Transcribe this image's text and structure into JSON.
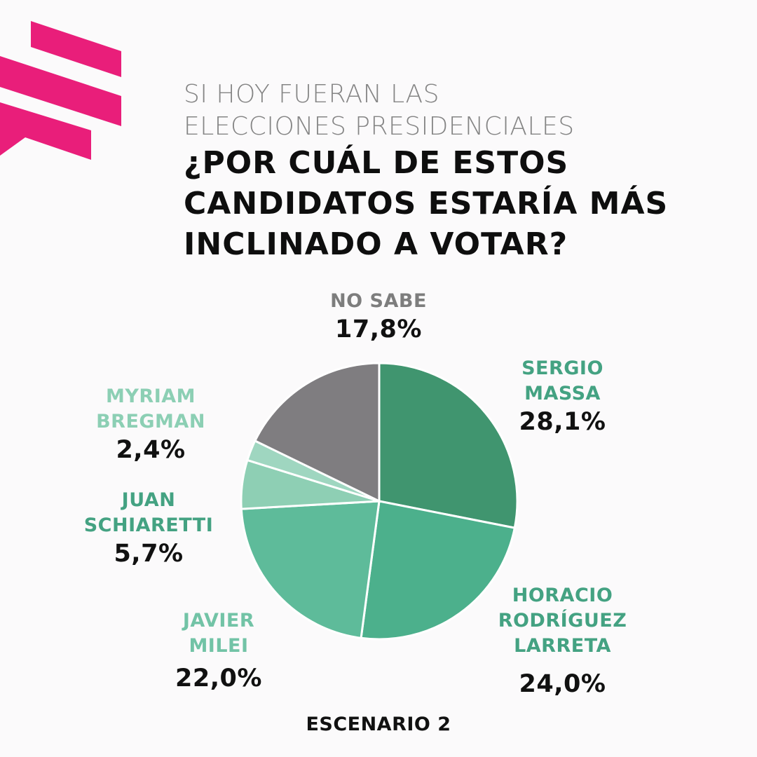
{
  "brand": {
    "accent": "#e91e7a"
  },
  "title": {
    "subtitle_lines": [
      "SI HOY FUERAN LAS",
      "ELECCIONES PRESIDENCIALES"
    ],
    "question_lines": [
      "¿POR CUÁL DE ESTOS",
      "CANDIDATOS ESTARÍA MÁS",
      "INCLINADO A VOTAR?"
    ]
  },
  "chart_data": {
    "type": "pie",
    "title": "¿POR CUÁL DE ESTOS CANDIDATOS ESTARÍA MÁS INCLINADO A VOTAR?",
    "scenario": "ESCENARIO 2",
    "slices": [
      {
        "name_lines": [
          "SERGIO",
          "MASSA"
        ],
        "value": 28.1,
        "label": "28,1%",
        "color": "#40956f",
        "label_color": "#44a282"
      },
      {
        "name_lines": [
          "HORACIO",
          "RODRÍGUEZ",
          "LARRETA"
        ],
        "value": 24.0,
        "label": "24,0%",
        "color": "#4cb08c",
        "label_color": "#44a282"
      },
      {
        "name_lines": [
          "JAVIER",
          "MILEI"
        ],
        "value": 22.0,
        "label": "22,0%",
        "color": "#5ebb9a",
        "label_color": "#72c3a6"
      },
      {
        "name_lines": [
          "JUAN",
          "SCHIARETTI"
        ],
        "value": 5.7,
        "label": "5,7%",
        "color": "#8ecfb4",
        "label_color": "#44a282"
      },
      {
        "name_lines": [
          "MYRIAM",
          "BREGMAN"
        ],
        "value": 2.4,
        "label": "2,4%",
        "color": "#9fd6c0",
        "label_color": "#8ccfb4"
      },
      {
        "name_lines": [
          "NO SABE"
        ],
        "value": 17.8,
        "label": "17,8%",
        "color": "#7f7d80",
        "label_color": "#7d7d7d"
      }
    ]
  },
  "footer": {
    "scenario": "ESCENARIO 2"
  }
}
